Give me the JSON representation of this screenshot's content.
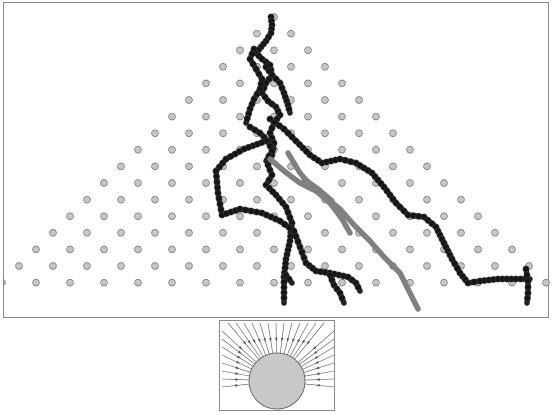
{
  "colors": {
    "background": "#ffffff",
    "frame": "#8a8a8a",
    "peg_fill": "#c6c6c6",
    "peg_stroke": "#707070",
    "trail_dark": "#222222",
    "trail_light": "#808080",
    "thumb_circle": "#c8c8c8",
    "thumb_lines": "#555555"
  },
  "views": {
    "main": {
      "label": "",
      "content": "peg-board-simulation"
    },
    "thumbnail": {
      "label": "",
      "content": "field-diagram"
    }
  }
}
